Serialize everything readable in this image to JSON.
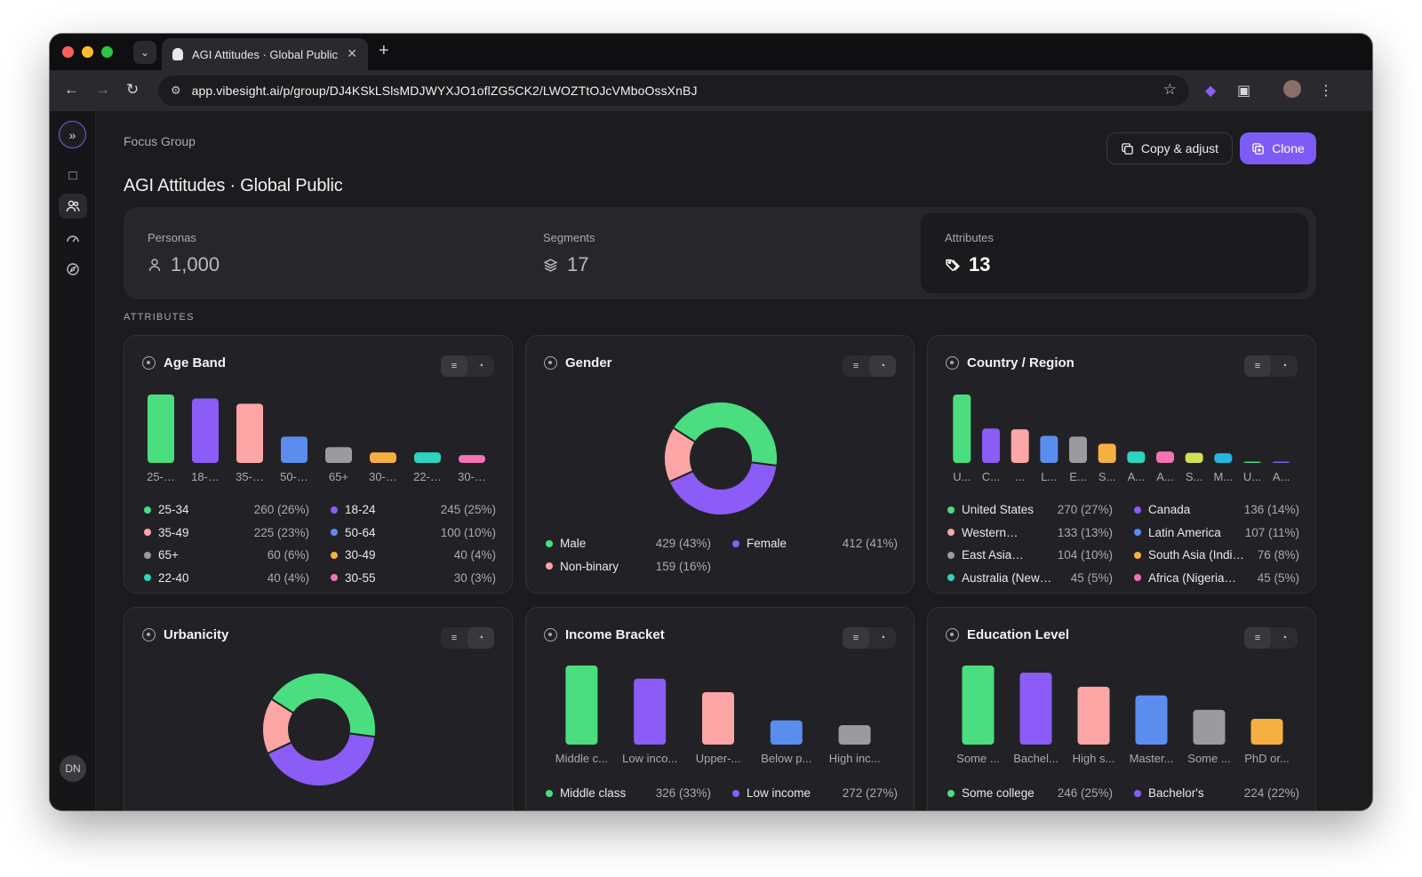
{
  "browser": {
    "tab_title": "AGI Attitudes · Global Public",
    "url": "app.vibesight.ai/p/group/DJ4KSkLSlsMDJWYXJO1oflZG5CK2/LWOZTtOJcVMboOssXnBJ",
    "traffic_lights": [
      "#ff5f57",
      "#febc2e",
      "#28c840"
    ]
  },
  "sidebar": {
    "avatar_initials": "DN"
  },
  "header": {
    "breadcrumb": "Focus Group",
    "title": "AGI Attitudes · Global Public",
    "copy_label": "Copy & adjust",
    "clone_label": "Clone"
  },
  "stats": {
    "personas": {
      "label": "Personas",
      "value": "1,000"
    },
    "segments": {
      "label": "Segments",
      "value": "17"
    },
    "attributes": {
      "label": "Attributes",
      "value": "13"
    }
  },
  "section_label": "ATTRIBUTES",
  "cards": {
    "age": {
      "title": "Age Band",
      "chart_data": {
        "type": "bar",
        "categories": [
          "25-…",
          "18-…",
          "35-…",
          "50-…",
          "65+",
          "30-…",
          "22-…",
          "30-…"
        ],
        "values": [
          260,
          245,
          225,
          100,
          60,
          40,
          40,
          30
        ],
        "colors": [
          "#4ade80",
          "#8b5cf6",
          "#fca5a5",
          "#5b8def",
          "#9a9a9f",
          "#f5b041",
          "#2dd4bf",
          "#f472b6"
        ]
      },
      "legend": [
        {
          "name": "25-34",
          "count": "260 (26%)",
          "color": "#4ade80"
        },
        {
          "name": "18-24",
          "count": "245 (25%)",
          "color": "#8b5cf6"
        },
        {
          "name": "35-49",
          "count": "225 (23%)",
          "color": "#fca5a5"
        },
        {
          "name": "50-64",
          "count": "100 (10%)",
          "color": "#5b8def"
        },
        {
          "name": "65+",
          "count": "60 (6%)",
          "color": "#9a9a9f"
        },
        {
          "name": "30-49",
          "count": "40 (4%)",
          "color": "#f5b041"
        },
        {
          "name": "22-40",
          "count": "40 (4%)",
          "color": "#2dd4bf"
        },
        {
          "name": "30-55",
          "count": "30 (3%)",
          "color": "#f472b6"
        }
      ]
    },
    "gender": {
      "title": "Gender",
      "chart_data": {
        "type": "pie",
        "categories": [
          "Male",
          "Female",
          "Non-binary"
        ],
        "values": [
          429,
          412,
          159
        ],
        "colors": [
          "#4ade80",
          "#8b5cf6",
          "#fca5a5"
        ]
      },
      "legend": [
        {
          "name": "Male",
          "count": "429 (43%)",
          "color": "#4ade80"
        },
        {
          "name": "Female",
          "count": "412 (41%)",
          "color": "#8b5cf6"
        },
        {
          "name": "Non-binary",
          "count": "159 (16%)",
          "color": "#fca5a5"
        }
      ]
    },
    "country": {
      "title": "Country / Region",
      "chart_data": {
        "type": "bar",
        "categories": [
          "U...",
          "C...",
          "...",
          "L...",
          "E...",
          "S...",
          "A...",
          "A...",
          "S...",
          "M...",
          "U...",
          "A..."
        ],
        "values": [
          270,
          136,
          133,
          107,
          104,
          76,
          45,
          45,
          40,
          38,
          3,
          3
        ],
        "colors": [
          "#4ade80",
          "#8b5cf6",
          "#fca5a5",
          "#5b8def",
          "#9a9a9f",
          "#f5b041",
          "#2dd4bf",
          "#f472b6",
          "#d4e157",
          "#22b8e0",
          "#4ade80",
          "#8b5cf6"
        ]
      },
      "legend": [
        {
          "name": "United States",
          "count": "270 (27%)",
          "color": "#4ade80"
        },
        {
          "name": "Canada",
          "count": "136 (14%)",
          "color": "#8b5cf6"
        },
        {
          "name": "Western…",
          "count": "133 (13%)",
          "color": "#fca5a5"
        },
        {
          "name": "Latin America",
          "count": "107 (11%)",
          "color": "#5b8def"
        },
        {
          "name": "East Asia…",
          "count": "104 (10%)",
          "color": "#9a9a9f"
        },
        {
          "name": "South Asia (Indi…",
          "count": "76 (8%)",
          "color": "#f5b041"
        },
        {
          "name": "Australia (New…",
          "count": "45 (5%)",
          "color": "#2dd4bf"
        },
        {
          "name": "Africa (Nigeria…",
          "count": "45 (5%)",
          "color": "#f472b6"
        }
      ]
    },
    "urbanicity": {
      "title": "Urbanicity",
      "chart_data": {
        "type": "pie",
        "values": [
          43,
          41,
          16
        ],
        "colors": [
          "#4ade80",
          "#8b5cf6",
          "#fca5a5"
        ]
      }
    },
    "income": {
      "title": "Income Bracket",
      "chart_data": {
        "type": "bar",
        "categories": [
          "Middle c...",
          "Low inco...",
          "Upper-...",
          "Below p...",
          "High inc..."
        ],
        "values": [
          326,
          272,
          216,
          100,
          80
        ],
        "colors": [
          "#4ade80",
          "#8b5cf6",
          "#fca5a5",
          "#5b8def",
          "#9a9a9f"
        ]
      },
      "legend": [
        {
          "name": "Middle class",
          "count": "326 (33%)",
          "color": "#4ade80"
        },
        {
          "name": "Low income",
          "count": "272 (27%)",
          "color": "#8b5cf6"
        }
      ]
    },
    "education": {
      "title": "Education Level",
      "chart_data": {
        "type": "bar",
        "categories": [
          "Some ...",
          "Bachel...",
          "High s...",
          "Master...",
          "Some ...",
          "PhD or..."
        ],
        "values": [
          246,
          224,
          180,
          153,
          108,
          80
        ],
        "colors": [
          "#4ade80",
          "#8b5cf6",
          "#fca5a5",
          "#5b8def",
          "#9a9a9f",
          "#f5b041"
        ]
      },
      "legend": [
        {
          "name": "Some college",
          "count": "246 (25%)",
          "color": "#4ade80"
        },
        {
          "name": "Bachelor's",
          "count": "224 (22%)",
          "color": "#8b5cf6"
        }
      ]
    }
  }
}
